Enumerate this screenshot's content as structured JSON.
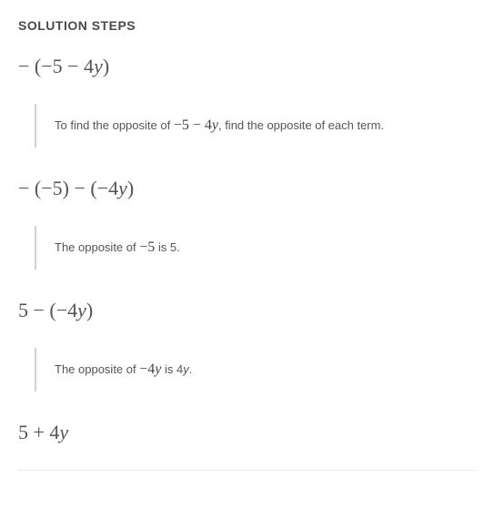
{
  "heading": "SOLUTION STEPS",
  "steps": [
    {
      "expr_html": "− (−5 − 4<span class='mathvar'>y</span>)",
      "explain_prefix": "To find the opposite of ",
      "explain_math": "−5 − 4<span class='mathvar'>y</span>",
      "explain_suffix": ", find the opposite of each term."
    },
    {
      "expr_html": "− (−5) − (−4<span class='mathvar'>y</span>)",
      "explain_prefix": "The opposite of ",
      "explain_math": "−5",
      "explain_suffix": " is 5."
    },
    {
      "expr_html": "5 − (−4<span class='mathvar'>y</span>)",
      "explain_prefix": "The opposite of ",
      "explain_math": "−4<span class='mathvar'>y</span>",
      "explain_suffix": " is 4<span class='mathvar'>y</span>."
    },
    {
      "expr_html": "5 + 4<span class='mathvar'>y</span>"
    }
  ],
  "style": {
    "heading_color": "#4a4a4a",
    "heading_fontsize": 14,
    "expr_color": "#555555",
    "expr_fontsize": 22,
    "explain_fontsize": 13,
    "explain_color": "#555555",
    "vbar_color": "#d0d0d0",
    "background_color": "#ffffff",
    "hr_color": "#e8e8e8"
  }
}
